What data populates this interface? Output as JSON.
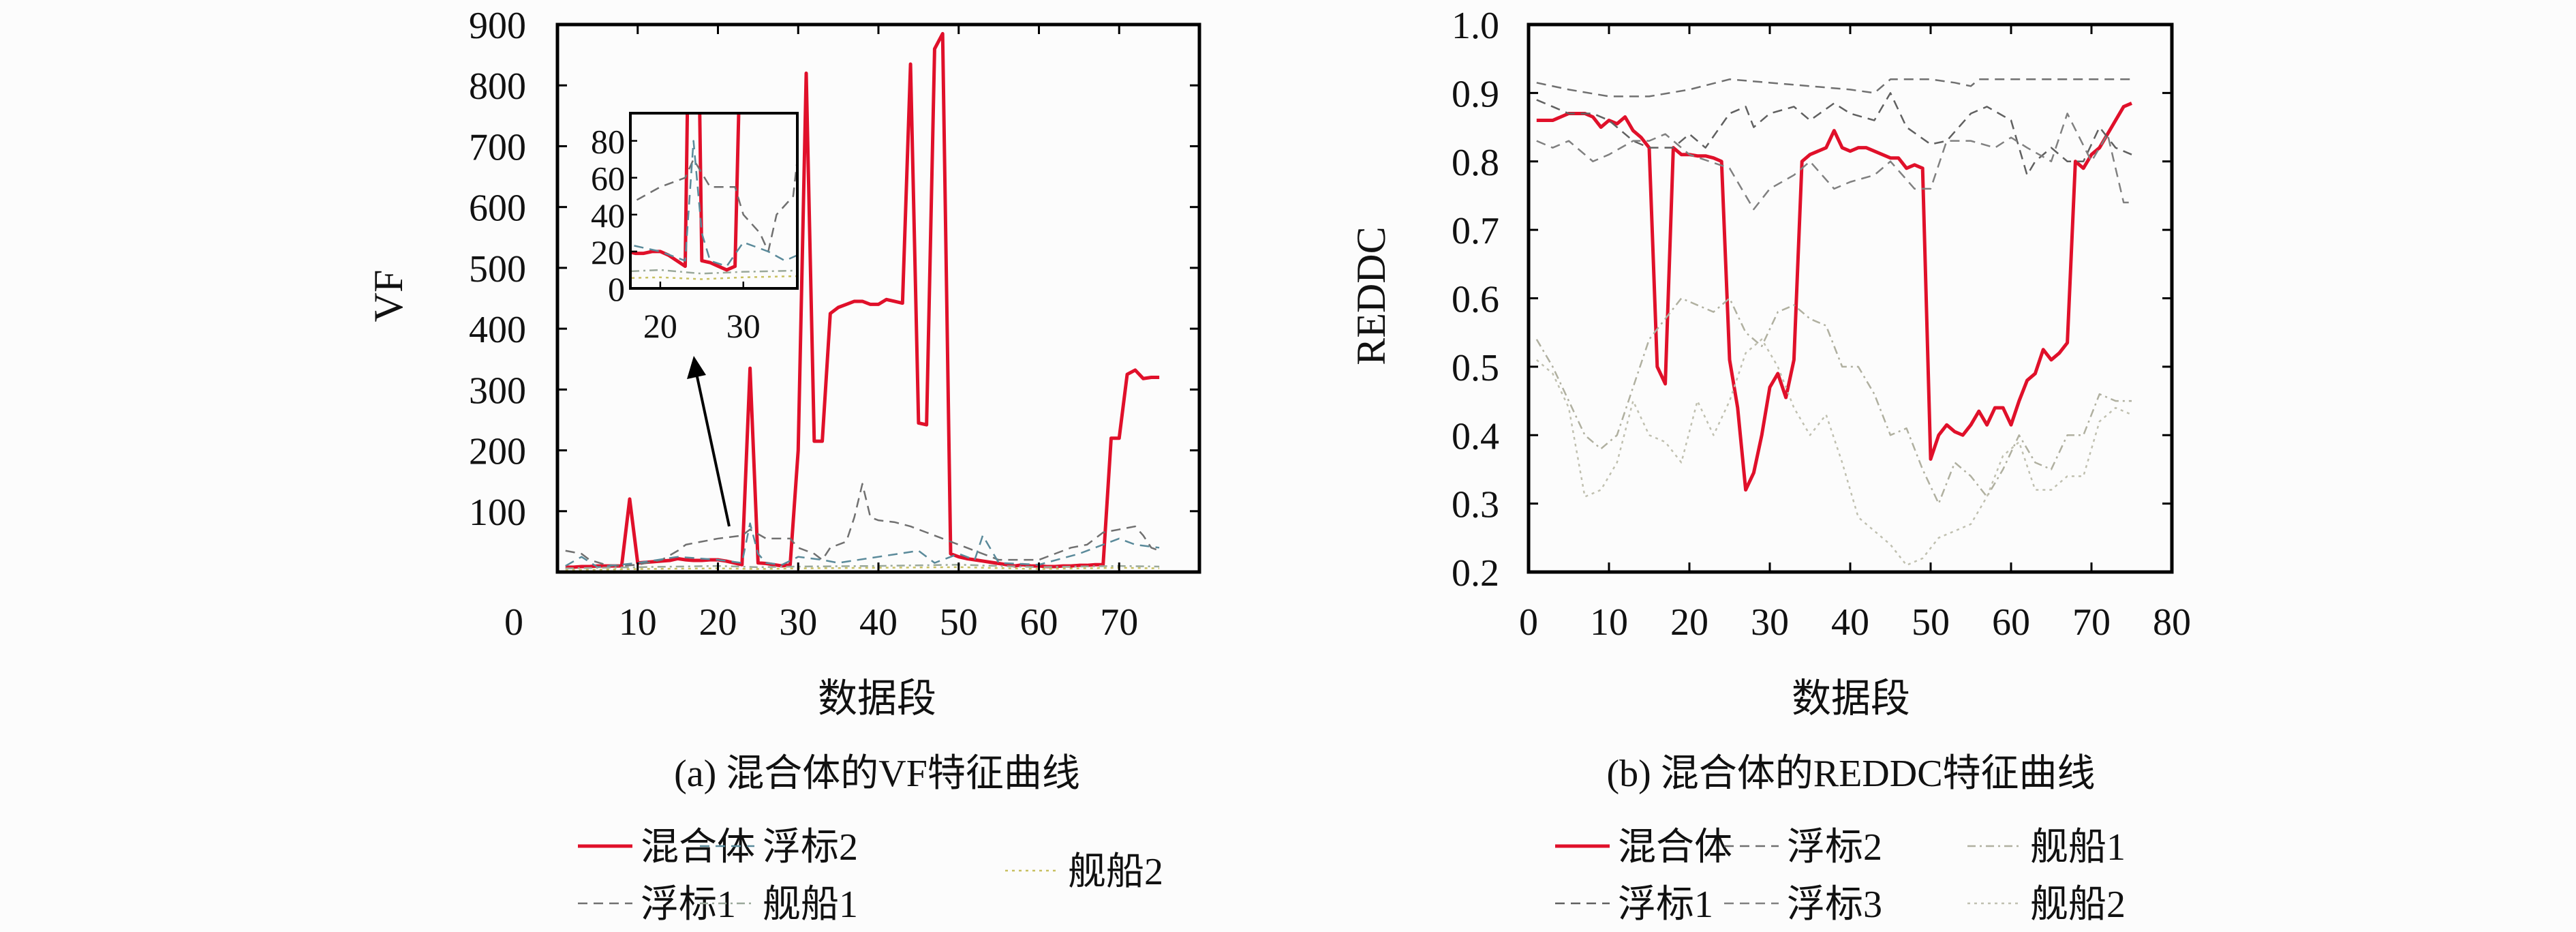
{
  "chart_data": [
    {
      "type": "line",
      "caption": "(a) 混合体的VF特征曲线",
      "xlabel": "数据段",
      "ylabel": "VF",
      "xlim": [
        0,
        80
      ],
      "ylim": [
        0,
        900
      ],
      "xticks": [
        0,
        10,
        20,
        30,
        40,
        50,
        60,
        70
      ],
      "yticks": [
        100,
        200,
        300,
        400,
        500,
        600,
        700,
        800,
        900
      ],
      "grid": false,
      "legend": {
        "placement": "bottom",
        "entries": [
          "混合体",
          "浮标2",
          "舰船2",
          "浮标1",
          "舰船1"
        ]
      },
      "inset": {
        "xlim": [
          16.4,
          36.5
        ],
        "ylim": [
          0,
          95
        ],
        "xticks": [
          20,
          30
        ],
        "yticks": [
          0,
          20,
          40,
          60,
          80
        ]
      },
      "series": [
        {
          "name": "混合体",
          "color": "#e0102a",
          "style": "solid",
          "x": [
            1,
            2,
            3,
            4,
            5,
            6,
            7,
            8,
            9,
            10,
            11,
            12,
            13,
            14,
            15,
            16,
            17,
            18,
            19,
            20,
            21,
            22,
            23,
            24,
            25,
            26,
            27,
            28,
            29,
            30,
            31,
            32,
            33,
            34,
            35,
            36,
            37,
            38,
            39,
            40,
            41,
            42,
            43,
            44,
            45,
            46,
            47,
            48,
            49,
            50,
            51,
            52,
            53,
            54,
            55,
            56,
            57,
            58,
            59,
            60,
            61,
            62,
            63,
            64,
            65,
            66,
            67,
            68,
            69,
            70,
            71,
            72,
            73,
            74,
            75
          ],
          "y": [
            8,
            8,
            9,
            9,
            10,
            10,
            10,
            10,
            120,
            15,
            16,
            17,
            18,
            19,
            22,
            20,
            19,
            19,
            20,
            20,
            18,
            15,
            12,
            335,
            15,
            14,
            12,
            10,
            12,
            200,
            820,
            215,
            215,
            425,
            435,
            440,
            445,
            445,
            440,
            440,
            448,
            445,
            442,
            835,
            245,
            242,
            860,
            885,
            30,
            25,
            22,
            20,
            18,
            16,
            14,
            12,
            10,
            12,
            10,
            10,
            9,
            9,
            10,
            10,
            11,
            11,
            12,
            12,
            220,
            220,
            325,
            332,
            318,
            320,
            320
          ]
        },
        {
          "name": "浮标1",
          "color": "#707070",
          "style": "dash",
          "x": [
            1,
            3,
            4,
            6,
            8,
            10,
            13,
            15,
            16,
            18,
            20,
            23,
            24,
            26,
            29,
            30,
            32,
            33,
            34,
            36,
            37,
            38,
            39,
            40,
            42,
            44,
            46,
            48,
            50,
            52,
            55,
            60,
            62,
            64,
            66,
            67,
            68,
            70,
            72,
            73,
            74,
            75
          ],
          "y": [
            35,
            30,
            20,
            12,
            10,
            12,
            20,
            35,
            45,
            50,
            55,
            60,
            70,
            55,
            55,
            40,
            30,
            20,
            40,
            50,
            90,
            145,
            90,
            85,
            82,
            75,
            65,
            55,
            45,
            35,
            20,
            20,
            30,
            40,
            45,
            55,
            65,
            70,
            75,
            60,
            40,
            35
          ]
        },
        {
          "name": "浮标2",
          "color": "#5a8a9a",
          "style": "dash",
          "x": [
            1,
            3,
            5,
            10,
            15,
            20,
            23,
            24,
            25,
            26,
            28,
            30,
            33,
            35,
            40,
            45,
            47,
            50,
            52,
            53,
            55,
            60,
            65,
            70,
            72,
            75
          ],
          "y": [
            10,
            25,
            8,
            15,
            25,
            20,
            15,
            80,
            30,
            15,
            12,
            25,
            20,
            15,
            25,
            35,
            15,
            30,
            20,
            60,
            15,
            12,
            30,
            55,
            45,
            40
          ]
        },
        {
          "name": "舰船1",
          "color": "#9aa89a",
          "style": "dashdot",
          "x": [
            1,
            10,
            20,
            25,
            30,
            40,
            50,
            60,
            70,
            75
          ],
          "y": [
            6,
            8,
            10,
            8,
            9,
            10,
            12,
            8,
            10,
            9
          ]
        },
        {
          "name": "舰船2",
          "color": "#c8c060",
          "style": "dot",
          "x": [
            1,
            10,
            20,
            25,
            30,
            40,
            50,
            60,
            70,
            75
          ],
          "y": [
            3,
            5,
            6,
            5,
            6,
            7,
            8,
            5,
            7,
            6
          ]
        }
      ]
    },
    {
      "type": "line",
      "caption": "(b) 混合体的REDDC特征曲线",
      "xlabel": "数据段",
      "ylabel": "REDDC",
      "xlim": [
        0,
        80
      ],
      "ylim": [
        0.2,
        1.0
      ],
      "xticks": [
        0,
        10,
        20,
        30,
        40,
        50,
        60,
        70,
        80
      ],
      "yticks": [
        "0.2",
        "0.3",
        "0.4",
        "0.5",
        "0.6",
        "0.7",
        "0.8",
        "0.9",
        "1.0"
      ],
      "grid": false,
      "legend": {
        "placement": "bottom",
        "entries": [
          "混合体",
          "浮标2",
          "舰船1",
          "浮标1",
          "浮标3",
          "舰船2"
        ]
      },
      "series": [
        {
          "name": "混合体",
          "color": "#e0102a",
          "style": "solid",
          "x": [
            1,
            2,
            3,
            4,
            5,
            6,
            7,
            8,
            9,
            10,
            11,
            12,
            13,
            14,
            15,
            16,
            17,
            18,
            19,
            20,
            21,
            22,
            23,
            24,
            25,
            26,
            27,
            28,
            29,
            30,
            31,
            32,
            33,
            34,
            35,
            36,
            37,
            38,
            39,
            40,
            41,
            42,
            43,
            44,
            45,
            46,
            47,
            48,
            49,
            50,
            51,
            52,
            53,
            54,
            55,
            56,
            57,
            58,
            59,
            60,
            61,
            62,
            63,
            64,
            65,
            66,
            67,
            68,
            69,
            70,
            71,
            72,
            73,
            74,
            75
          ],
          "y": [
            0.86,
            0.86,
            0.86,
            0.865,
            0.87,
            0.87,
            0.87,
            0.865,
            0.85,
            0.86,
            0.855,
            0.865,
            0.845,
            0.835,
            0.82,
            0.5,
            0.475,
            0.82,
            0.81,
            0.81,
            0.808,
            0.808,
            0.805,
            0.8,
            0.51,
            0.44,
            0.32,
            0.345,
            0.4,
            0.47,
            0.49,
            0.455,
            0.51,
            0.8,
            0.81,
            0.815,
            0.82,
            0.845,
            0.82,
            0.815,
            0.82,
            0.82,
            0.815,
            0.81,
            0.805,
            0.805,
            0.79,
            0.795,
            0.79,
            0.365,
            0.4,
            0.415,
            0.405,
            0.4,
            0.415,
            0.435,
            0.415,
            0.44,
            0.44,
            0.415,
            0.45,
            0.48,
            0.49,
            0.525,
            0.51,
            0.52,
            0.535,
            0.8,
            0.79,
            0.81,
            0.82,
            0.84,
            0.86,
            0.88,
            0.885
          ]
        },
        {
          "name": "浮标2",
          "color": "#707070",
          "style": "dash",
          "x": [
            1,
            5,
            10,
            15,
            20,
            25,
            30,
            35,
            40,
            43,
            45,
            50,
            53,
            55,
            56,
            60,
            65,
            70,
            75
          ],
          "y": [
            0.915,
            0.905,
            0.895,
            0.895,
            0.905,
            0.92,
            0.915,
            0.91,
            0.905,
            0.9,
            0.92,
            0.92,
            0.915,
            0.91,
            0.92,
            0.92,
            0.92,
            0.92,
            0.92
          ]
        },
        {
          "name": "浮标1",
          "color": "#606060",
          "style": "dash",
          "x": [
            1,
            3,
            5,
            8,
            10,
            13,
            15,
            18,
            20,
            22,
            25,
            27,
            28,
            30,
            33,
            35,
            38,
            40,
            43,
            45,
            47,
            50,
            52,
            55,
            57,
            60,
            62,
            63,
            65,
            67,
            69,
            71,
            73,
            75
          ],
          "y": [
            0.89,
            0.88,
            0.87,
            0.87,
            0.86,
            0.83,
            0.82,
            0.82,
            0.84,
            0.82,
            0.87,
            0.88,
            0.85,
            0.87,
            0.88,
            0.86,
            0.885,
            0.87,
            0.86,
            0.9,
            0.85,
            0.825,
            0.83,
            0.87,
            0.88,
            0.86,
            0.78,
            0.8,
            0.82,
            0.8,
            0.8,
            0.85,
            0.82,
            0.81
          ]
        },
        {
          "name": "浮标3",
          "color": "#808080",
          "style": "dash",
          "x": [
            1,
            3,
            5,
            8,
            10,
            13,
            15,
            17,
            20,
            25,
            28,
            30,
            33,
            35,
            38,
            40,
            43,
            45,
            48,
            50,
            52,
            55,
            58,
            60,
            62,
            65,
            67,
            70,
            72,
            74,
            75
          ],
          "y": [
            0.83,
            0.82,
            0.83,
            0.8,
            0.81,
            0.83,
            0.83,
            0.84,
            0.81,
            0.79,
            0.73,
            0.76,
            0.78,
            0.8,
            0.76,
            0.77,
            0.78,
            0.8,
            0.76,
            0.76,
            0.83,
            0.83,
            0.82,
            0.835,
            0.82,
            0.8,
            0.87,
            0.8,
            0.84,
            0.74,
            0.74
          ]
        },
        {
          "name": "舰船1",
          "color": "#b0b0a0",
          "style": "dashdot",
          "x": [
            1,
            3,
            5,
            7,
            9,
            11,
            13,
            15,
            17,
            19,
            21,
            23,
            25,
            27,
            29,
            31,
            33,
            35,
            37,
            39,
            41,
            43,
            45,
            47,
            49,
            51,
            53,
            55,
            57,
            59,
            61,
            63,
            65,
            67,
            69,
            71,
            73,
            75
          ],
          "y": [
            0.54,
            0.5,
            0.45,
            0.4,
            0.38,
            0.4,
            0.47,
            0.54,
            0.57,
            0.6,
            0.59,
            0.58,
            0.6,
            0.55,
            0.53,
            0.58,
            0.59,
            0.57,
            0.56,
            0.5,
            0.5,
            0.46,
            0.4,
            0.41,
            0.35,
            0.3,
            0.36,
            0.34,
            0.31,
            0.35,
            0.4,
            0.36,
            0.35,
            0.4,
            0.4,
            0.46,
            0.45,
            0.45
          ]
        },
        {
          "name": "舰船2",
          "color": "#c0c0b0",
          "style": "dot",
          "x": [
            1,
            3,
            5,
            7,
            9,
            11,
            13,
            15,
            17,
            19,
            21,
            23,
            25,
            27,
            29,
            31,
            33,
            35,
            37,
            39,
            41,
            43,
            45,
            47,
            49,
            51,
            53,
            55,
            57,
            59,
            61,
            63,
            65,
            67,
            69,
            71,
            73,
            75
          ],
          "y": [
            0.51,
            0.49,
            0.44,
            0.31,
            0.32,
            0.36,
            0.45,
            0.4,
            0.39,
            0.36,
            0.45,
            0.4,
            0.45,
            0.52,
            0.54,
            0.5,
            0.44,
            0.4,
            0.43,
            0.36,
            0.28,
            0.26,
            0.24,
            0.21,
            0.22,
            0.25,
            0.26,
            0.27,
            0.31,
            0.37,
            0.39,
            0.32,
            0.32,
            0.34,
            0.34,
            0.42,
            0.44,
            0.43
          ]
        }
      ]
    }
  ]
}
